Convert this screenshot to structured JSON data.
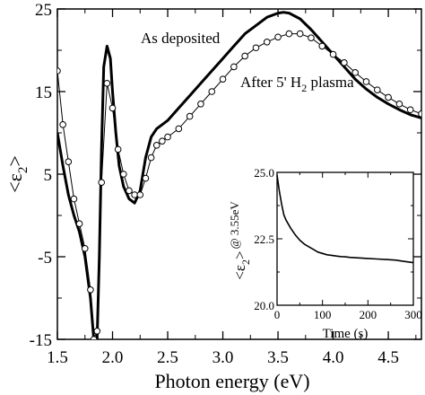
{
  "chart_data": [
    {
      "type": "line",
      "xlabel": "Photon energy (eV)",
      "ylabel_main": "<ε",
      "ylabel_sub": "2",
      "ylabel_close": ">",
      "xlim": [
        1.5,
        4.8
      ],
      "ylim": [
        -15,
        25
      ],
      "xticks": [
        "1.5",
        "2.0",
        "2.5",
        "3.0",
        "3.5",
        "4.0",
        "4.5"
      ],
      "xtick_values": [
        1.5,
        2.0,
        2.5,
        3.0,
        3.5,
        4.0,
        4.5
      ],
      "yticks": [
        "-15",
        "-5",
        "5",
        "15",
        "25"
      ],
      "ytick_values": [
        -15,
        -5,
        5,
        15,
        25
      ],
      "annotations": {
        "deposited": "As deposited",
        "plasma_prefix": "After 5' H",
        "plasma_sub": "2",
        "plasma_suffix": " plasma"
      },
      "series": [
        {
          "style": "thick-line",
          "x": [
            1.5,
            1.55,
            1.6,
            1.65,
            1.7,
            1.75,
            1.8,
            1.83,
            1.86,
            1.88,
            1.9,
            1.92,
            1.95,
            1.98,
            2.0,
            2.03,
            2.06,
            2.1,
            2.15,
            2.2,
            2.25,
            2.3,
            2.35,
            2.4,
            2.45,
            2.5,
            2.6,
            2.7,
            2.8,
            2.9,
            3.0,
            3.1,
            3.2,
            3.3,
            3.4,
            3.5,
            3.55,
            3.6,
            3.7,
            3.8,
            3.9,
            4.0,
            4.1,
            4.2,
            4.3,
            4.4,
            4.5,
            4.6,
            4.7,
            4.8
          ],
          "y": [
            10,
            6,
            2.5,
            0,
            -2,
            -5,
            -10,
            -15,
            -15,
            -5,
            8,
            18,
            20.5,
            19,
            15,
            10,
            6,
            3.5,
            2,
            1.5,
            3,
            7,
            9.5,
            10.5,
            11,
            11.5,
            13,
            14.5,
            16,
            17.5,
            19,
            20.5,
            22,
            23,
            24,
            24.5,
            24.6,
            24.5,
            23.8,
            22.5,
            21,
            19.5,
            18,
            16.5,
            15.3,
            14.3,
            13.5,
            12.8,
            12.2,
            11.8
          ]
        },
        {
          "style": "circles",
          "x": [
            1.5,
            1.55,
            1.6,
            1.65,
            1.7,
            1.75,
            1.8,
            1.83,
            1.86,
            1.9,
            1.95,
            2.0,
            2.05,
            2.1,
            2.15,
            2.2,
            2.25,
            2.3,
            2.35,
            2.4,
            2.45,
            2.5,
            2.6,
            2.7,
            2.8,
            2.9,
            3.0,
            3.1,
            3.2,
            3.3,
            3.4,
            3.5,
            3.6,
            3.7,
            3.8,
            3.9,
            4.0,
            4.1,
            4.2,
            4.3,
            4.4,
            4.5,
            4.6,
            4.7,
            4.8
          ],
          "y": [
            17.5,
            11,
            6.5,
            2,
            -1,
            -4,
            -9,
            -15,
            -14,
            4,
            16,
            13,
            8,
            5,
            3,
            2.5,
            2.5,
            4.5,
            7,
            8.5,
            9,
            9.5,
            10.5,
            12,
            13.5,
            15,
            16.5,
            18,
            19.3,
            20.3,
            21,
            21.6,
            22,
            22,
            21.5,
            20.5,
            19.5,
            18.5,
            17.3,
            16.2,
            15.2,
            14.3,
            13.5,
            12.8,
            12.3
          ]
        }
      ]
    },
    {
      "type": "line",
      "inset": true,
      "xlabel": "Time (s)",
      "ylabel_main": "<ε",
      "ylabel_sub": "2",
      "ylabel_close": ">",
      "ylabel_suffix": "@ 3.55eV",
      "xlim": [
        0,
        300
      ],
      "ylim": [
        20,
        25
      ],
      "xticks": [
        "0",
        "100",
        "200",
        "300"
      ],
      "xtick_values": [
        0,
        100,
        200,
        300
      ],
      "yticks": [
        "20.0",
        "22.5",
        "25.0"
      ],
      "ytick_values": [
        20,
        22.5,
        25
      ],
      "series": [
        {
          "x": [
            0,
            5,
            10,
            15,
            20,
            30,
            40,
            50,
            60,
            70,
            80,
            90,
            100,
            110,
            120,
            130,
            140,
            150,
            160,
            180,
            200,
            220,
            240,
            260,
            280,
            300
          ],
          "y": [
            24.9,
            24.3,
            23.8,
            23.4,
            23.2,
            22.9,
            22.65,
            22.45,
            22.3,
            22.2,
            22.1,
            22.0,
            21.95,
            21.9,
            21.88,
            21.85,
            21.83,
            21.82,
            21.8,
            21.78,
            21.76,
            21.74,
            21.72,
            21.7,
            21.65,
            21.6
          ]
        }
      ]
    }
  ]
}
